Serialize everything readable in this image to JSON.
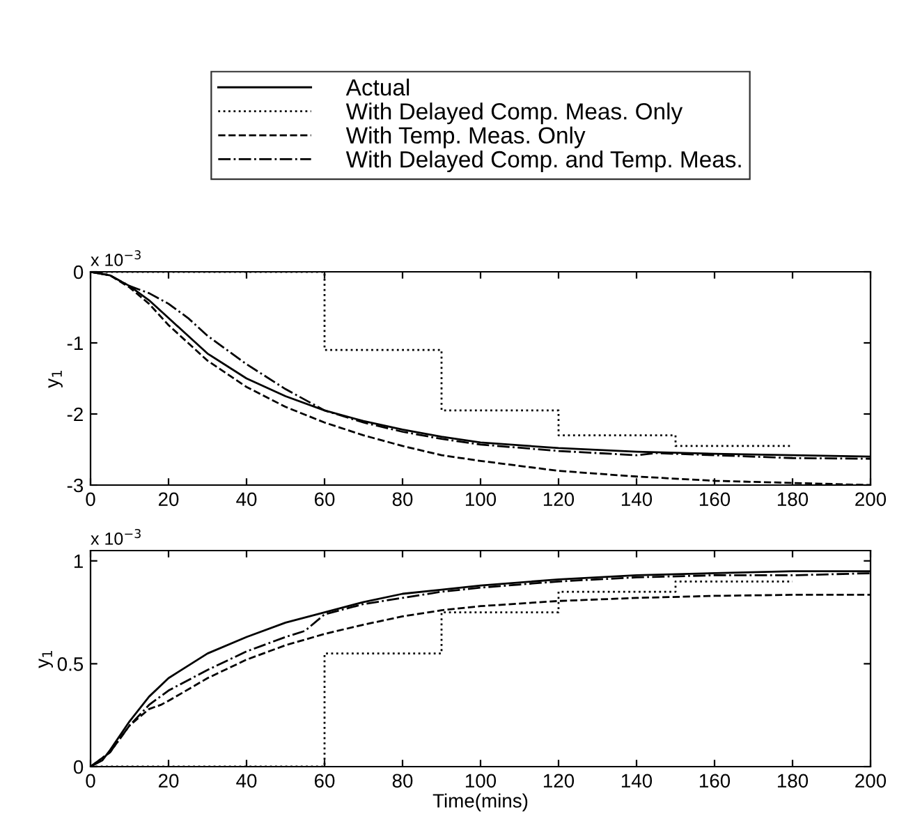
{
  "chart_data": [
    {
      "type": "line",
      "ylabel": "y$_{1}$",
      "annotations": [
        "x 10$^{−3}$"
      ],
      "xlim": [
        0,
        200
      ],
      "xticks": [
        0,
        20,
        40,
        60,
        80,
        100,
        120,
        140,
        160,
        180,
        200
      ],
      "ylim": [
        -3,
        0
      ],
      "yticks": [
        -3,
        -2,
        -1,
        0
      ],
      "legend": "top",
      "grid": false,
      "series": [
        {
          "name": "Actual",
          "color": "#000000",
          "line_style": "solid",
          "x": [
            0,
            5,
            10,
            15,
            20,
            25,
            30,
            40,
            50,
            60,
            70,
            80,
            90,
            100,
            120,
            140,
            160,
            180,
            200
          ],
          "values": [
            0,
            -0.05,
            -0.2,
            -0.4,
            -0.65,
            -0.9,
            -1.15,
            -1.5,
            -1.75,
            -1.95,
            -2.1,
            -2.22,
            -2.32,
            -2.4,
            -2.48,
            -2.53,
            -2.56,
            -2.58,
            -2.6
          ]
        },
        {
          "name": "With Delayed Comp. Meas. Only",
          "type": "step",
          "color": "#000000",
          "line_style": "dotted",
          "x": [
            0,
            60,
            90,
            120,
            150,
            180
          ],
          "values": [
            0,
            -1.1,
            -1.95,
            -2.3,
            -2.45,
            -2.45
          ]
        },
        {
          "name": "With Temp. Meas. Only",
          "color": "#000000",
          "line_style": "dashed",
          "x": [
            0,
            5,
            10,
            15,
            20,
            25,
            30,
            40,
            50,
            60,
            70,
            80,
            90,
            100,
            120,
            140,
            160,
            180,
            200
          ],
          "values": [
            0,
            -0.05,
            -0.22,
            -0.45,
            -0.75,
            -1.0,
            -1.25,
            -1.62,
            -1.9,
            -2.12,
            -2.3,
            -2.45,
            -2.58,
            -2.66,
            -2.8,
            -2.88,
            -2.94,
            -2.97,
            -3.0
          ]
        },
        {
          "name": "With Delayed Comp. and Temp. Meas.",
          "color": "#000000",
          "line_style": "dashdot",
          "x": [
            0,
            5,
            10,
            15,
            20,
            25,
            30,
            40,
            50,
            55,
            60,
            70,
            80,
            90,
            100,
            120,
            140,
            145,
            160,
            180,
            200
          ],
          "values": [
            0,
            -0.05,
            -0.2,
            -0.3,
            -0.45,
            -0.65,
            -0.9,
            -1.3,
            -1.65,
            -1.8,
            -1.95,
            -2.12,
            -2.25,
            -2.35,
            -2.43,
            -2.52,
            -2.58,
            -2.55,
            -2.58,
            -2.62,
            -2.63
          ]
        }
      ]
    },
    {
      "type": "line",
      "ylabel": "y$_{1}$",
      "xlabel": "Time(mins)",
      "annotations": [
        "x 10$^{−3}$"
      ],
      "xlim": [
        0,
        200
      ],
      "xticks": [
        0,
        20,
        40,
        60,
        80,
        100,
        120,
        140,
        160,
        180,
        200
      ],
      "ylim": [
        0,
        1.05
      ],
      "yticks": [
        0,
        0.5,
        1
      ],
      "grid": false,
      "series": [
        {
          "color": "#000000",
          "line_style": "solid",
          "x": [
            0,
            3,
            5,
            10,
            15,
            20,
            30,
            40,
            50,
            60,
            70,
            80,
            90,
            100,
            120,
            140,
            160,
            180,
            200
          ],
          "values": [
            0,
            0.03,
            0.08,
            0.22,
            0.34,
            0.43,
            0.55,
            0.63,
            0.7,
            0.75,
            0.8,
            0.84,
            0.86,
            0.88,
            0.91,
            0.93,
            0.94,
            0.95,
            0.95
          ]
        },
        {
          "type": "step",
          "color": "#000000",
          "line_style": "dotted",
          "x": [
            0,
            60,
            90,
            120,
            150,
            180
          ],
          "values": [
            0,
            0.55,
            0.75,
            0.85,
            0.9,
            0.9
          ]
        },
        {
          "color": "#000000",
          "line_style": "dashed",
          "x": [
            0,
            5,
            10,
            15,
            18,
            20,
            30,
            40,
            50,
            60,
            70,
            80,
            90,
            100,
            120,
            140,
            160,
            180,
            200
          ],
          "values": [
            0,
            0.07,
            0.2,
            0.28,
            0.3,
            0.32,
            0.43,
            0.52,
            0.59,
            0.645,
            0.69,
            0.73,
            0.76,
            0.78,
            0.805,
            0.82,
            0.83,
            0.835,
            0.835
          ]
        },
        {
          "color": "#000000",
          "line_style": "dashdot",
          "x": [
            0,
            5,
            10,
            15,
            20,
            30,
            40,
            50,
            55,
            60,
            70,
            80,
            90,
            100,
            120,
            140,
            160,
            180,
            200
          ],
          "values": [
            0,
            0.07,
            0.2,
            0.3,
            0.37,
            0.47,
            0.56,
            0.63,
            0.66,
            0.74,
            0.79,
            0.82,
            0.85,
            0.87,
            0.9,
            0.92,
            0.93,
            0.93,
            0.94
          ]
        }
      ]
    }
  ]
}
